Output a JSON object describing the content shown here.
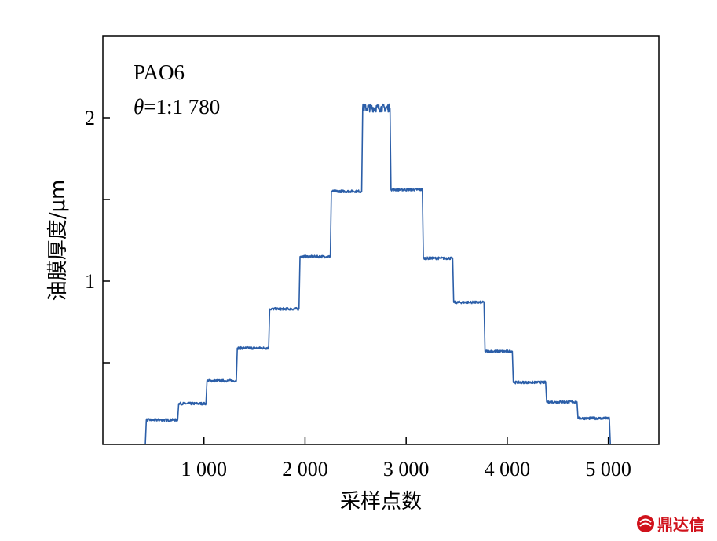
{
  "chart_data": {
    "type": "line",
    "xlabel": "采样点数",
    "ylabel": "油膜厚度/μm",
    "xlim": [
      0,
      5500
    ],
    "ylim": [
      0,
      2.5
    ],
    "x_ticks": [
      1000,
      2000,
      3000,
      4000,
      5000
    ],
    "x_tick_labels": [
      "1 000",
      "2 000",
      "3 000",
      "4 000",
      "5 000"
    ],
    "y_ticks": [
      0.5,
      1,
      1.5,
      2
    ],
    "y_tick_labels": [
      "",
      "1",
      "",
      "2"
    ],
    "annotation": {
      "line1": "PAO6",
      "line2_symbol": "θ",
      "line2_rest": "=1:1 780"
    },
    "color": "#2b5ea8",
    "series": [
      {
        "x": [
          0,
          420,
          430,
          740,
          750,
          1020,
          1030,
          1320,
          1330,
          1640,
          1650,
          1940,
          1950,
          2250,
          2260,
          2560,
          2570,
          2840,
          2850,
          3160,
          3170,
          3460,
          3470,
          3770,
          3780,
          4050,
          4060,
          4380,
          4390,
          4690,
          4700,
          5010,
          5020
        ],
        "y": [
          0,
          0,
          0.15,
          0.15,
          0.25,
          0.25,
          0.39,
          0.39,
          0.59,
          0.59,
          0.83,
          0.83,
          1.15,
          1.15,
          1.55,
          1.55,
          2.06,
          2.06,
          1.56,
          1.56,
          1.14,
          1.14,
          0.87,
          0.87,
          0.57,
          0.57,
          0.38,
          0.38,
          0.26,
          0.26,
          0.16,
          0.16,
          0.0
        ]
      }
    ]
  },
  "watermark": {
    "text": "鼎达信",
    "logo": "ddx-logo-icon"
  }
}
